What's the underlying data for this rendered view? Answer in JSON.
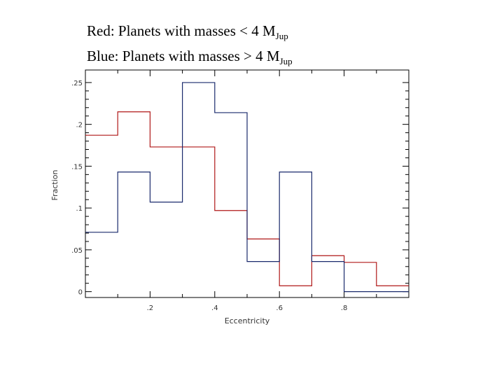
{
  "legend": {
    "red_prefix": "Red: Planets with masses < 4 M",
    "red_sub": "Jup",
    "blue_prefix": "Blue: Planets with masses > 4 M",
    "blue_sub": "Jup"
  },
  "chart_data": {
    "type": "histogram-step",
    "title": "Red: Planets with masses < 4 MJup / Blue: Planets with masses > 4 MJup",
    "xlabel": "Eccentricity",
    "ylabel": "Fraction",
    "xlim": [
      0,
      1.0
    ],
    "ylim": [
      -0.007,
      0.265
    ],
    "x_ticks": [
      0.2,
      0.4,
      0.6,
      0.8
    ],
    "x_tick_labels": [
      ".2",
      ".4",
      ".6",
      ".8"
    ],
    "y_ticks": [
      0,
      0.05,
      0.1,
      0.15,
      0.2,
      0.25
    ],
    "y_tick_labels": [
      "0",
      ".05",
      ".1",
      ".15",
      ".2",
      ".25"
    ],
    "bin_edges": [
      0,
      0.1,
      0.2,
      0.3,
      0.4,
      0.5,
      0.6,
      0.7,
      0.8,
      0.9,
      1.0
    ],
    "series": [
      {
        "name": "Planets with masses < 4 MJup",
        "color": "#b01818",
        "values": [
          0.187,
          0.215,
          0.173,
          0.173,
          0.097,
          0.063,
          0.007,
          0.043,
          0.035,
          0.007
        ]
      },
      {
        "name": "Planets with masses > 4 MJup",
        "color": "#1a2a6c",
        "values": [
          0.071,
          0.143,
          0.107,
          0.25,
          0.214,
          0.036,
          0.143,
          0.036,
          0.0,
          0.0
        ]
      }
    ],
    "frame_color": "#000000"
  }
}
